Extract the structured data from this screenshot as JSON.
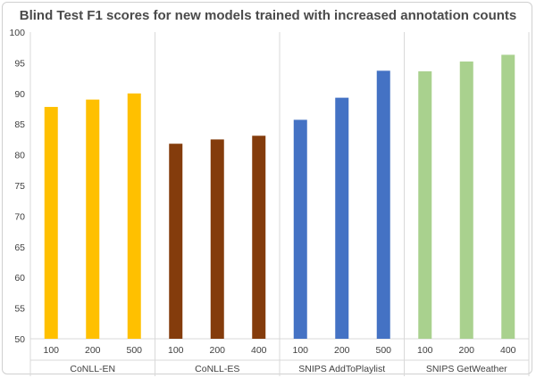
{
  "chart_data": {
    "type": "bar",
    "title": "Blind Test F1 scores for new models trained with increased annotation counts",
    "xlabel": "",
    "ylabel": "",
    "ylim": [
      50,
      100
    ],
    "yticks": [
      50,
      55,
      60,
      65,
      70,
      75,
      80,
      85,
      90,
      95,
      100
    ],
    "grid": false,
    "legend": "none",
    "groups": [
      {
        "name": "CoNLL-EN",
        "color": "#ffc000",
        "categories": [
          "100",
          "200",
          "500"
        ],
        "values": [
          87.8,
          89.0,
          90.0
        ]
      },
      {
        "name": "CoNLL-ES",
        "color": "#843c0c",
        "categories": [
          "100",
          "200",
          "400"
        ],
        "values": [
          81.8,
          82.5,
          83.1
        ]
      },
      {
        "name": "SNIPS AddToPlaylist",
        "color": "#4472c4",
        "categories": [
          "100",
          "200",
          "500"
        ],
        "values": [
          85.7,
          89.3,
          93.7
        ]
      },
      {
        "name": "SNIPS GetWeather",
        "color": "#a9d18e",
        "categories": [
          "100",
          "200",
          "400"
        ],
        "values": [
          93.6,
          95.2,
          96.3
        ]
      }
    ]
  }
}
